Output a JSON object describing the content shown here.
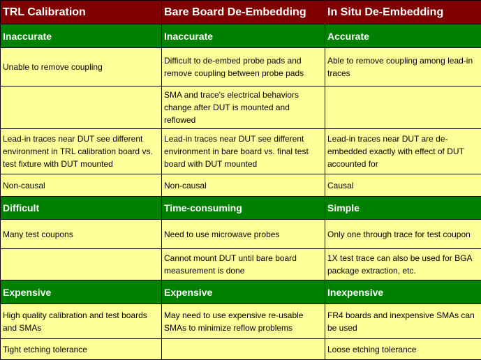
{
  "headers": [
    "TRL Calibration",
    "Bare Board De-Embedding",
    "In Situ De-Embedding"
  ],
  "rows": [
    {
      "type": "cat",
      "cells": [
        "Inaccurate",
        "Inaccurate",
        "Accurate"
      ]
    },
    {
      "type": "item",
      "cells": [
        "Unable to remove coupling",
        "Difficult to de-embed probe pads and remove coupling between probe pads",
        "Able to remove coupling among lead-in traces"
      ]
    },
    {
      "type": "item",
      "cells": [
        "",
        "SMA and trace's electrical behaviors change after DUT is mounted and reflowed",
        ""
      ]
    },
    {
      "type": "item",
      "cells": [
        "Lead-in traces near DUT see different environment in TRL calibration board vs. test fixture with DUT mounted",
        "Lead-in traces near DUT see different environment in bare board vs. final test board with DUT mounted",
        "Lead-in traces near DUT are de-embedded exactly with effect of DUT accounted for"
      ]
    },
    {
      "type": "item",
      "cells": [
        "Non-causal",
        "Non-causal",
        "Causal"
      ]
    },
    {
      "type": "cat",
      "cells": [
        "Difficult",
        "Time-consuming",
        "Simple"
      ]
    },
    {
      "type": "item",
      "cells": [
        "Many test coupons",
        "Need to use microwave probes",
        "Only one through trace for test coupon"
      ]
    },
    {
      "type": "item",
      "cells": [
        "",
        "Cannot mount DUT until bare board measurement is done",
        "1X test trace can also be used for BGA package extraction, etc."
      ]
    },
    {
      "type": "cat",
      "cells": [
        "Expensive",
        "Expensive",
        "Inexpensive"
      ]
    },
    {
      "type": "item",
      "cells": [
        "High quality calibration and test boards and SMAs",
        "May need to use expensive re-usable SMAs to minimize reflow problems",
        "FR4 boards and inexpensive SMAs can be used"
      ]
    },
    {
      "type": "item",
      "cells": [
        "Tight etching tolerance",
        "",
        "Loose etching tolerance"
      ]
    }
  ]
}
